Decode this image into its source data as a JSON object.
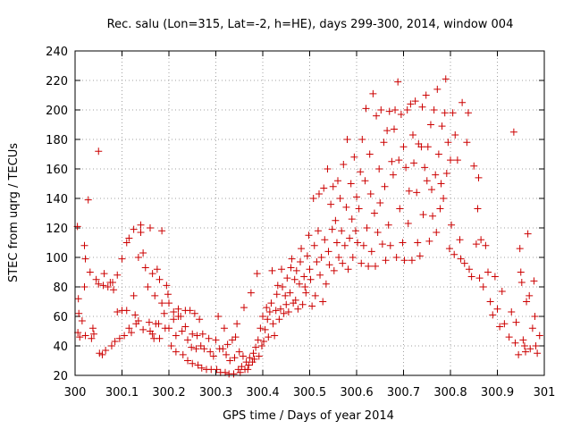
{
  "chart_data": {
    "type": "scatter",
    "title": "Rec. salu (Lon=315, Lat=-2, h=HE), days 299-300, 2014, window 004",
    "xlabel": "GPS time / Days of year 2014",
    "ylabel": "STEC from uqrg / TECUs",
    "xlim": [
      300,
      301
    ],
    "ylim": [
      20,
      240
    ],
    "grid": true,
    "marker": "+",
    "series_color": "#cc0000",
    "x_ticks": [
      {
        "value": 300.0,
        "label": "300"
      },
      {
        "value": 300.1,
        "label": "300.1"
      },
      {
        "value": 300.2,
        "label": "300.2"
      },
      {
        "value": 300.3,
        "label": "300.3"
      },
      {
        "value": 300.4,
        "label": "300.4"
      },
      {
        "value": 300.5,
        "label": "300.5"
      },
      {
        "value": 300.6,
        "label": "300.6"
      },
      {
        "value": 300.7,
        "label": "300.7"
      },
      {
        "value": 300.8,
        "label": "300.8"
      },
      {
        "value": 300.9,
        "label": "300.9"
      },
      {
        "value": 301.0,
        "label": "301"
      }
    ],
    "y_ticks": [
      {
        "value": 20,
        "label": "20"
      },
      {
        "value": 40,
        "label": "40"
      },
      {
        "value": 60,
        "label": "60"
      },
      {
        "value": 80,
        "label": "80"
      },
      {
        "value": 100,
        "label": "100"
      },
      {
        "value": 120,
        "label": "120"
      },
      {
        "value": 140,
        "label": "140"
      },
      {
        "value": 160,
        "label": "160"
      },
      {
        "value": 180,
        "label": "180"
      },
      {
        "value": 200,
        "label": "200"
      },
      {
        "value": 220,
        "label": "220"
      },
      {
        "value": 240,
        "label": "240"
      }
    ],
    "points": [
      [
        300.005,
        121
      ],
      [
        300.007,
        72
      ],
      [
        300.008,
        62
      ],
      [
        300.006,
        49
      ],
      [
        300.01,
        46
      ],
      [
        300.015,
        57
      ],
      [
        300.02,
        108
      ],
      [
        300.022,
        99
      ],
      [
        300.02,
        80
      ],
      [
        300.022,
        47
      ],
      [
        300.028,
        139
      ],
      [
        300.032,
        90
      ],
      [
        300.035,
        45
      ],
      [
        300.038,
        52
      ],
      [
        300.04,
        48
      ],
      [
        300.045,
        85
      ],
      [
        300.05,
        172
      ],
      [
        300.05,
        82
      ],
      [
        300.052,
        35
      ],
      [
        300.058,
        34
      ],
      [
        300.06,
        81
      ],
      [
        300.062,
        89
      ],
      [
        300.065,
        37
      ],
      [
        300.07,
        80
      ],
      [
        300.075,
        83
      ],
      [
        300.078,
        40
      ],
      [
        300.08,
        83
      ],
      [
        300.082,
        78
      ],
      [
        300.085,
        43
      ],
      [
        300.09,
        88
      ],
      [
        300.09,
        63
      ],
      [
        300.095,
        45
      ],
      [
        300.1,
        99
      ],
      [
        300.1,
        64
      ],
      [
        300.105,
        47
      ],
      [
        300.11,
        110
      ],
      [
        300.11,
        64
      ],
      [
        300.115,
        113
      ],
      [
        300.115,
        52
      ],
      [
        300.12,
        49
      ],
      [
        300.125,
        119
      ],
      [
        300.125,
        74
      ],
      [
        300.128,
        61
      ],
      [
        300.13,
        55
      ],
      [
        300.135,
        100
      ],
      [
        300.135,
        57
      ],
      [
        300.14,
        117
      ],
      [
        300.14,
        122
      ],
      [
        300.145,
        103
      ],
      [
        300.145,
        51
      ],
      [
        300.15,
        93
      ],
      [
        300.155,
        80
      ],
      [
        300.158,
        56
      ],
      [
        300.16,
        120
      ],
      [
        300.16,
        50
      ],
      [
        300.165,
        89
      ],
      [
        300.165,
        48
      ],
      [
        300.168,
        45
      ],
      [
        300.17,
        74
      ],
      [
        300.172,
        55
      ],
      [
        300.175,
        92
      ],
      [
        300.178,
        55
      ],
      [
        300.18,
        85
      ],
      [
        300.18,
        45
      ],
      [
        300.185,
        118
      ],
      [
        300.185,
        69
      ],
      [
        300.19,
        62
      ],
      [
        300.192,
        52
      ],
      [
        300.195,
        81
      ],
      [
        300.198,
        75
      ],
      [
        300.2,
        69
      ],
      [
        300.2,
        52
      ],
      [
        300.205,
        40
      ],
      [
        300.21,
        63
      ],
      [
        300.21,
        58
      ],
      [
        300.215,
        47
      ],
      [
        300.215,
        36
      ],
      [
        300.22,
        65
      ],
      [
        300.22,
        60
      ],
      [
        300.225,
        60
      ],
      [
        300.228,
        50
      ],
      [
        300.23,
        34
      ],
      [
        300.235,
        64
      ],
      [
        300.235,
        53
      ],
      [
        300.24,
        44
      ],
      [
        300.24,
        30
      ],
      [
        300.245,
        64
      ],
      [
        300.248,
        39
      ],
      [
        300.25,
        48
      ],
      [
        300.25,
        28
      ],
      [
        300.255,
        62
      ],
      [
        300.258,
        38
      ],
      [
        300.26,
        47
      ],
      [
        300.262,
        27
      ],
      [
        300.265,
        58
      ],
      [
        300.268,
        40
      ],
      [
        300.27,
        25
      ],
      [
        300.272,
        48
      ],
      [
        300.275,
        38
      ],
      [
        300.28,
        24
      ],
      [
        300.285,
        45
      ],
      [
        300.288,
        36
      ],
      [
        300.29,
        24
      ],
      [
        300.295,
        33
      ],
      [
        300.3,
        44
      ],
      [
        300.302,
        24
      ],
      [
        300.305,
        60
      ],
      [
        300.308,
        38
      ],
      [
        300.31,
        22
      ],
      [
        300.315,
        38
      ],
      [
        300.318,
        52
      ],
      [
        300.32,
        22
      ],
      [
        300.322,
        34
      ],
      [
        300.325,
        41
      ],
      [
        300.328,
        21
      ],
      [
        300.33,
        30
      ],
      [
        300.335,
        44
      ],
      [
        300.338,
        21
      ],
      [
        300.34,
        32
      ],
      [
        300.342,
        46
      ],
      [
        300.345,
        55
      ],
      [
        300.348,
        24
      ],
      [
        300.35,
        36
      ],
      [
        300.352,
        22
      ],
      [
        300.355,
        26
      ],
      [
        300.358,
        33
      ],
      [
        300.36,
        66
      ],
      [
        300.362,
        24
      ],
      [
        300.365,
        29
      ],
      [
        300.368,
        24
      ],
      [
        300.37,
        27
      ],
      [
        300.372,
        32
      ],
      [
        300.375,
        76
      ],
      [
        300.378,
        29
      ],
      [
        300.38,
        35
      ],
      [
        300.382,
        31
      ],
      [
        300.385,
        39
      ],
      [
        300.388,
        89
      ],
      [
        300.39,
        44
      ],
      [
        300.392,
        33
      ],
      [
        300.395,
        52
      ],
      [
        300.398,
        40
      ],
      [
        300.4,
        60
      ],
      [
        300.402,
        43
      ],
      [
        300.405,
        51
      ],
      [
        300.408,
        66
      ],
      [
        300.41,
        58
      ],
      [
        300.412,
        46
      ],
      [
        300.415,
        63
      ],
      [
        300.418,
        69
      ],
      [
        300.42,
        91
      ],
      [
        300.422,
        55
      ],
      [
        300.425,
        47
      ],
      [
        300.428,
        64
      ],
      [
        300.43,
        75
      ],
      [
        300.432,
        81
      ],
      [
        300.435,
        58
      ],
      [
        300.438,
        65
      ],
      [
        300.44,
        92
      ],
      [
        300.442,
        80
      ],
      [
        300.445,
        62
      ],
      [
        300.448,
        74
      ],
      [
        300.45,
        68
      ],
      [
        300.452,
        86
      ],
      [
        300.455,
        63
      ],
      [
        300.458,
        76
      ],
      [
        300.46,
        93
      ],
      [
        300.462,
        99
      ],
      [
        300.465,
        69
      ],
      [
        300.468,
        85
      ],
      [
        300.47,
        71
      ],
      [
        300.472,
        91
      ],
      [
        300.475,
        65
      ],
      [
        300.478,
        82
      ],
      [
        300.48,
        97
      ],
      [
        300.482,
        106
      ],
      [
        300.485,
        68
      ],
      [
        300.488,
        87
      ],
      [
        300.49,
        80
      ],
      [
        300.492,
        76
      ],
      [
        300.495,
        101
      ],
      [
        300.498,
        115
      ],
      [
        300.5,
        92
      ],
      [
        300.502,
        85
      ],
      [
        300.505,
        67
      ],
      [
        300.508,
        140
      ],
      [
        300.51,
        108
      ],
      [
        300.512,
        74
      ],
      [
        300.515,
        97
      ],
      [
        300.518,
        118
      ],
      [
        300.52,
        143
      ],
      [
        300.522,
        88
      ],
      [
        300.525,
        100
      ],
      [
        300.528,
        70
      ],
      [
        300.53,
        147
      ],
      [
        300.532,
        112
      ],
      [
        300.535,
        82
      ],
      [
        300.538,
        160
      ],
      [
        300.54,
        104
      ],
      [
        300.542,
        95
      ],
      [
        300.545,
        136
      ],
      [
        300.548,
        119
      ],
      [
        300.55,
        148
      ],
      [
        300.552,
        91
      ],
      [
        300.555,
        125
      ],
      [
        300.558,
        110
      ],
      [
        300.56,
        152
      ],
      [
        300.562,
        100
      ],
      [
        300.565,
        140
      ],
      [
        300.568,
        118
      ],
      [
        300.57,
        96
      ],
      [
        300.572,
        163
      ],
      [
        300.575,
        108
      ],
      [
        300.578,
        134
      ],
      [
        300.58,
        180
      ],
      [
        300.582,
        92
      ],
      [
        300.585,
        113
      ],
      [
        300.588,
        150
      ],
      [
        300.59,
        126
      ],
      [
        300.592,
        100
      ],
      [
        300.595,
        168
      ],
      [
        300.598,
        118
      ],
      [
        300.6,
        141
      ],
      [
        300.602,
        110
      ],
      [
        300.605,
        133
      ],
      [
        300.608,
        158
      ],
      [
        300.61,
        96
      ],
      [
        300.612,
        180
      ],
      [
        300.615,
        108
      ],
      [
        300.618,
        152
      ],
      [
        300.62,
        201
      ],
      [
        300.622,
        120
      ],
      [
        300.625,
        94
      ],
      [
        300.628,
        170
      ],
      [
        300.63,
        143
      ],
      [
        300.632,
        104
      ],
      [
        300.635,
        211
      ],
      [
        300.638,
        130
      ],
      [
        300.64,
        94
      ],
      [
        300.642,
        196
      ],
      [
        300.645,
        117
      ],
      [
        300.648,
        160
      ],
      [
        300.65,
        137
      ],
      [
        300.652,
        200
      ],
      [
        300.655,
        109
      ],
      [
        300.658,
        178
      ],
      [
        300.66,
        148
      ],
      [
        300.662,
        98
      ],
      [
        300.665,
        186
      ],
      [
        300.668,
        122
      ],
      [
        300.67,
        199
      ],
      [
        300.672,
        108
      ],
      [
        300.675,
        165
      ],
      [
        300.678,
        156
      ],
      [
        300.68,
        187
      ],
      [
        300.682,
        200
      ],
      [
        300.685,
        100
      ],
      [
        300.688,
        219
      ],
      [
        300.69,
        166
      ],
      [
        300.692,
        133
      ],
      [
        300.695,
        197
      ],
      [
        300.698,
        110
      ],
      [
        300.7,
        175
      ],
      [
        300.702,
        98
      ],
      [
        300.705,
        161
      ],
      [
        300.708,
        200
      ],
      [
        300.71,
        123
      ],
      [
        300.712,
        145
      ],
      [
        300.715,
        204
      ],
      [
        300.718,
        98
      ],
      [
        300.72,
        183
      ],
      [
        300.722,
        164
      ],
      [
        300.725,
        206
      ],
      [
        300.728,
        144
      ],
      [
        300.73,
        110
      ],
      [
        300.732,
        177
      ],
      [
        300.735,
        101
      ],
      [
        300.738,
        175
      ],
      [
        300.74,
        202
      ],
      [
        300.742,
        129
      ],
      [
        300.745,
        161
      ],
      [
        300.748,
        210
      ],
      [
        300.75,
        152
      ],
      [
        300.752,
        175
      ],
      [
        300.755,
        111
      ],
      [
        300.758,
        190
      ],
      [
        300.76,
        146
      ],
      [
        300.762,
        128
      ],
      [
        300.765,
        200
      ],
      [
        300.768,
        156
      ],
      [
        300.77,
        117
      ],
      [
        300.772,
        214
      ],
      [
        300.775,
        170
      ],
      [
        300.778,
        133
      ],
      [
        300.78,
        150
      ],
      [
        300.782,
        189
      ],
      [
        300.785,
        140
      ],
      [
        300.788,
        198
      ],
      [
        300.79,
        221
      ],
      [
        300.792,
        157
      ],
      [
        300.795,
        178
      ],
      [
        300.798,
        106
      ],
      [
        300.8,
        166
      ],
      [
        300.802,
        122
      ],
      [
        300.805,
        198
      ],
      [
        300.808,
        102
      ],
      [
        300.81,
        183
      ],
      [
        300.815,
        166
      ],
      [
        300.82,
        112
      ],
      [
        300.822,
        99
      ],
      [
        300.825,
        205
      ],
      [
        300.83,
        96
      ],
      [
        300.835,
        178
      ],
      [
        300.838,
        198
      ],
      [
        300.84,
        92
      ],
      [
        300.845,
        87
      ],
      [
        300.85,
        162
      ],
      [
        300.855,
        109
      ],
      [
        300.858,
        133
      ],
      [
        300.86,
        154
      ],
      [
        300.862,
        86
      ],
      [
        300.865,
        112
      ],
      [
        300.87,
        80
      ],
      [
        300.875,
        108
      ],
      [
        300.88,
        90
      ],
      [
        300.885,
        70
      ],
      [
        300.89,
        61
      ],
      [
        300.895,
        87
      ],
      [
        300.9,
        65
      ],
      [
        300.905,
        53
      ],
      [
        300.91,
        77
      ],
      [
        300.915,
        55
      ],
      [
        300.925,
        46
      ],
      [
        300.93,
        63
      ],
      [
        300.935,
        185
      ],
      [
        300.938,
        42
      ],
      [
        300.94,
        56
      ],
      [
        300.945,
        34
      ],
      [
        300.948,
        106
      ],
      [
        300.95,
        90
      ],
      [
        300.952,
        83
      ],
      [
        300.955,
        44
      ],
      [
        300.958,
        40
      ],
      [
        300.96,
        36
      ],
      [
        300.962,
        70
      ],
      [
        300.965,
        116
      ],
      [
        300.968,
        74
      ],
      [
        300.97,
        38
      ],
      [
        300.975,
        52
      ],
      [
        300.978,
        84
      ],
      [
        300.98,
        60
      ],
      [
        300.982,
        40
      ],
      [
        300.985,
        35
      ],
      [
        300.99,
        47
      ]
    ]
  }
}
